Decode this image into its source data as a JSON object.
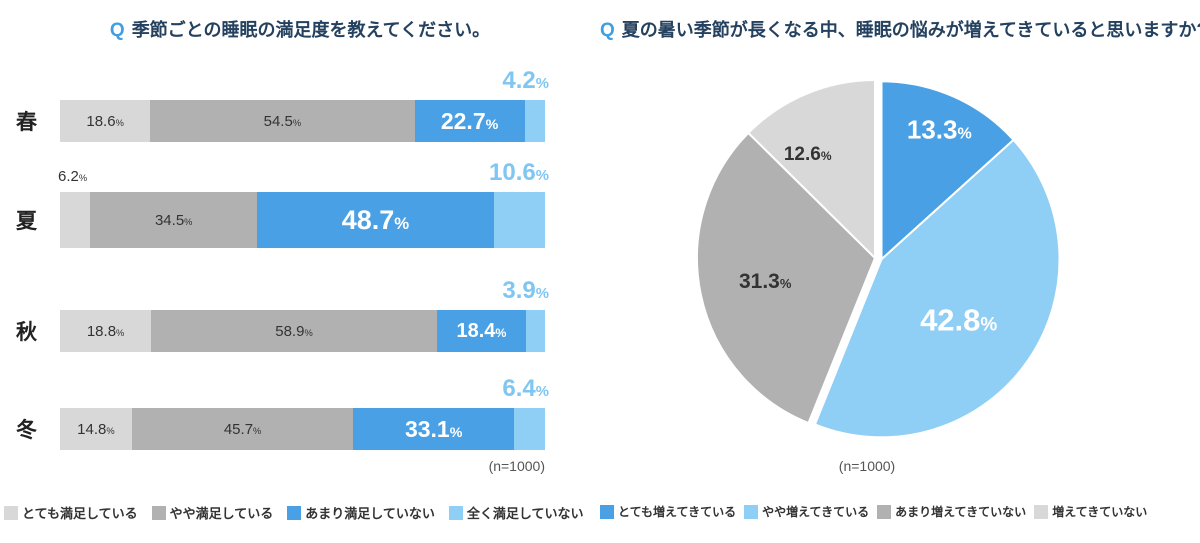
{
  "theme": {
    "q_color": "#3f9fe2",
    "title_color": "#24415f",
    "value_text_color": "#333333",
    "note_color": "#555555",
    "background": "#ffffff"
  },
  "chart_data": [
    {
      "type": "bar",
      "subtype": "horizontal-stacked",
      "q_prefix": "Q",
      "title": "季節ごとの睡眠の満足度を教えてください。",
      "categories": [
        "春",
        "夏",
        "秋",
        "冬"
      ],
      "series": [
        {
          "name": "とても満足している",
          "color": "#d8d8d8",
          "label_color": "#333333",
          "values": [
            18.6,
            6.2,
            18.8,
            14.8
          ]
        },
        {
          "name": "やや満足している",
          "color": "#b1b1b1",
          "label_color": "#333333",
          "values": [
            54.5,
            34.5,
            58.9,
            45.7
          ]
        },
        {
          "name": "あまり満足していない",
          "color": "#4aa0e4",
          "label_color": "#ffffff",
          "values": [
            22.7,
            48.7,
            18.4,
            33.1
          ]
        },
        {
          "name": "全く満足していない",
          "color": "#8fcef5",
          "label_color": "#7fc6f3",
          "values": [
            4.2,
            10.6,
            3.9,
            6.4
          ]
        }
      ],
      "unit": "%",
      "xlim": [
        0,
        100
      ],
      "note": "(n=1000)",
      "emphasized_category": "夏"
    },
    {
      "type": "pie",
      "q_prefix": "Q",
      "title": "夏の暑い季節が長くなる中、睡眠の悩みが増えてきていると思いますか?",
      "start_angle_deg": 0,
      "direction": "clockwise",
      "slices": [
        {
          "name": "とても増えてきている",
          "value": 13.3,
          "color": "#4aa0e4",
          "label_color": "#ffffff"
        },
        {
          "name": "やや増えてきている",
          "value": 42.8,
          "color": "#8fcef5",
          "label_color": "#ffffff"
        },
        {
          "name": "あまり増えてきていない",
          "value": 31.3,
          "color": "#b1b1b1",
          "label_color": "#333333"
        },
        {
          "name": "増えてきていない",
          "value": 12.6,
          "color": "#d8d8d8",
          "label_color": "#333333"
        }
      ],
      "unit": "%",
      "note": "(n=1000)"
    }
  ]
}
